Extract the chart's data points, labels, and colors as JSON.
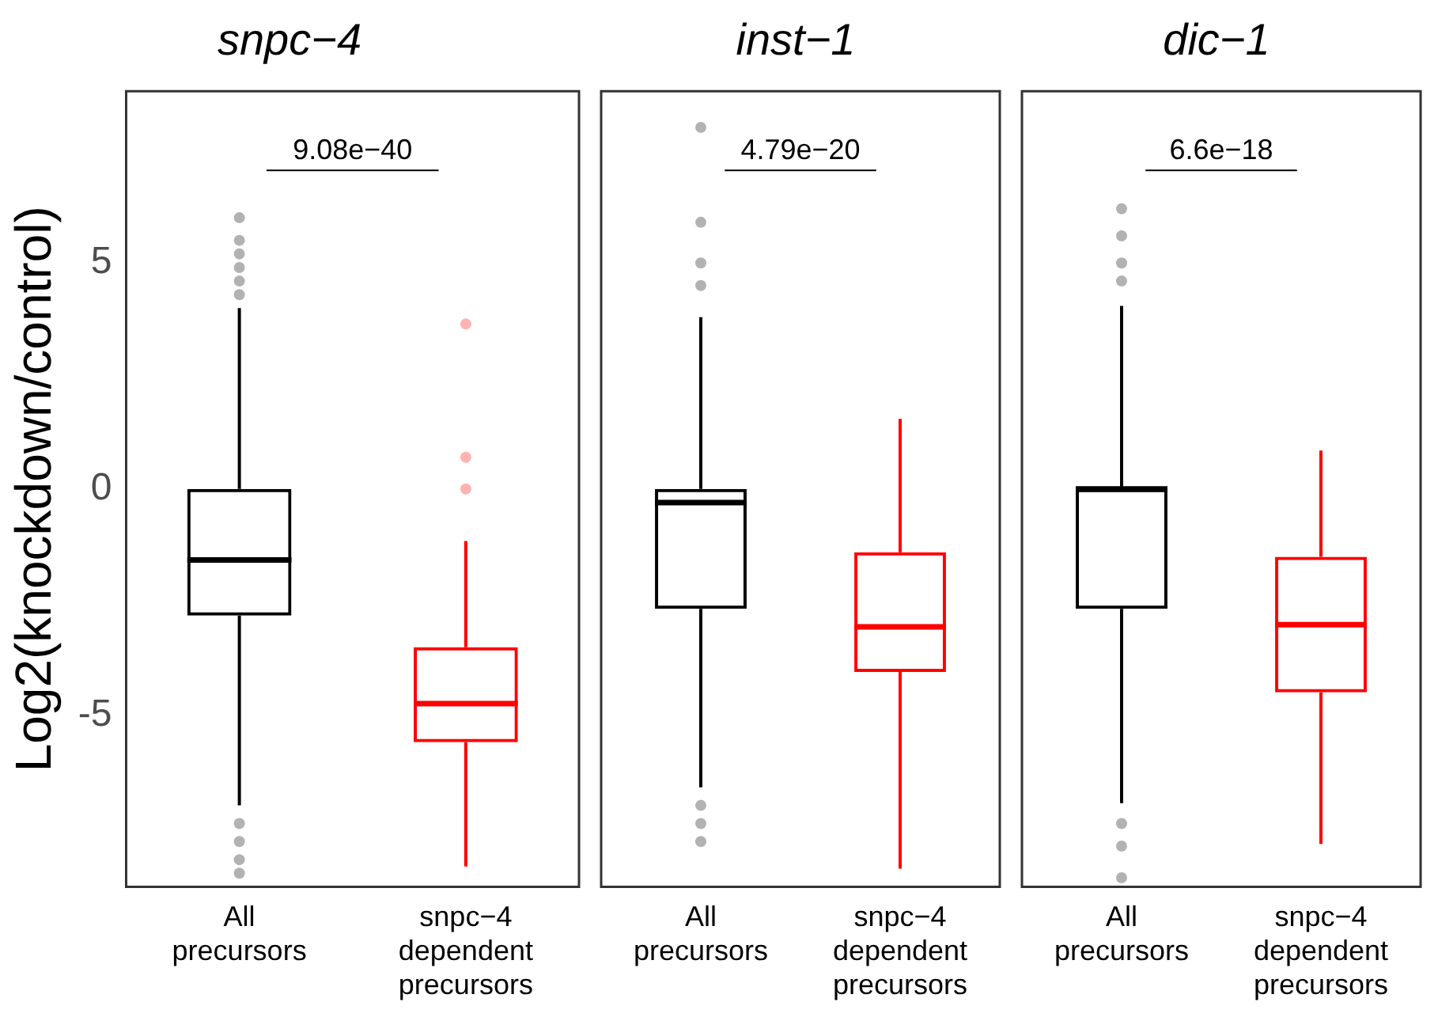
{
  "chart_data": [
    {
      "type": "box",
      "title": "snpc−4",
      "ylabel": "Log2(knockdown/control)",
      "categories": [
        "All precursors",
        "snpc−4 dependent precursors"
      ],
      "colors": [
        "#000000",
        "#ff0000"
      ],
      "ylim": [
        -8.8,
        8.8
      ],
      "yticks": [
        -5,
        0,
        5
      ],
      "grid": false,
      "annotations": [
        "9.08e−40"
      ],
      "boxes": [
        {
          "low": -7.0,
          "q1": -2.8,
          "median": -1.57,
          "q3": 0,
          "high": 4.0,
          "outliers": [
            6.0,
            5.5,
            5.2,
            4.9,
            4.6,
            4.3,
            -7.4,
            -7.8,
            -8.2,
            -8.5
          ]
        },
        {
          "low": -8.35,
          "q1": -5.6,
          "median": -4.75,
          "q3": -3.5,
          "high": -1.15,
          "outliers": [
            3.65,
            0.7,
            0.0
          ]
        }
      ]
    },
    {
      "type": "box",
      "title": "inst−1",
      "categories": [
        "All precursors",
        "snpc−4 dependent precursors"
      ],
      "colors": [
        "#000000",
        "#ff0000"
      ],
      "ylim": [
        -8.8,
        8.8
      ],
      "yticks": [
        -5,
        0,
        5
      ],
      "grid": false,
      "tick_labels": "x",
      "annotations": [
        "4.79e−20"
      ],
      "boxes": [
        {
          "low": -6.6,
          "q1": -2.65,
          "median": -0.3,
          "q3": 0,
          "high": 3.8,
          "outliers": [
            8.0,
            5.9,
            5.0,
            4.5,
            -7.0,
            -7.4,
            -7.8
          ]
        },
        {
          "low": -8.4,
          "q1": -4.05,
          "median": -3.05,
          "q3": -1.4,
          "high": 1.55
        }
      ]
    },
    {
      "type": "box",
      "title": "dic−1",
      "categories": [
        "All precursors",
        "snpc−4 dependent precursors"
      ],
      "colors": [
        "#000000",
        "#ff0000"
      ],
      "ylim": [
        -8.8,
        8.8
      ],
      "yticks": [
        -5,
        0,
        5
      ],
      "grid": false,
      "tick_labels": "x",
      "annotations": [
        "6.6e−18"
      ],
      "boxes": [
        {
          "low": -6.95,
          "q1": -2.65,
          "median": 0,
          "q3": 0,
          "high": 4.05,
          "outliers": [
            6.2,
            5.6,
            5.0,
            4.6,
            -7.4,
            -7.9,
            -8.6
          ]
        },
        {
          "low": -7.85,
          "q1": -4.5,
          "median": -3.0,
          "q3": -1.5,
          "high": 0.85
        }
      ]
    }
  ]
}
